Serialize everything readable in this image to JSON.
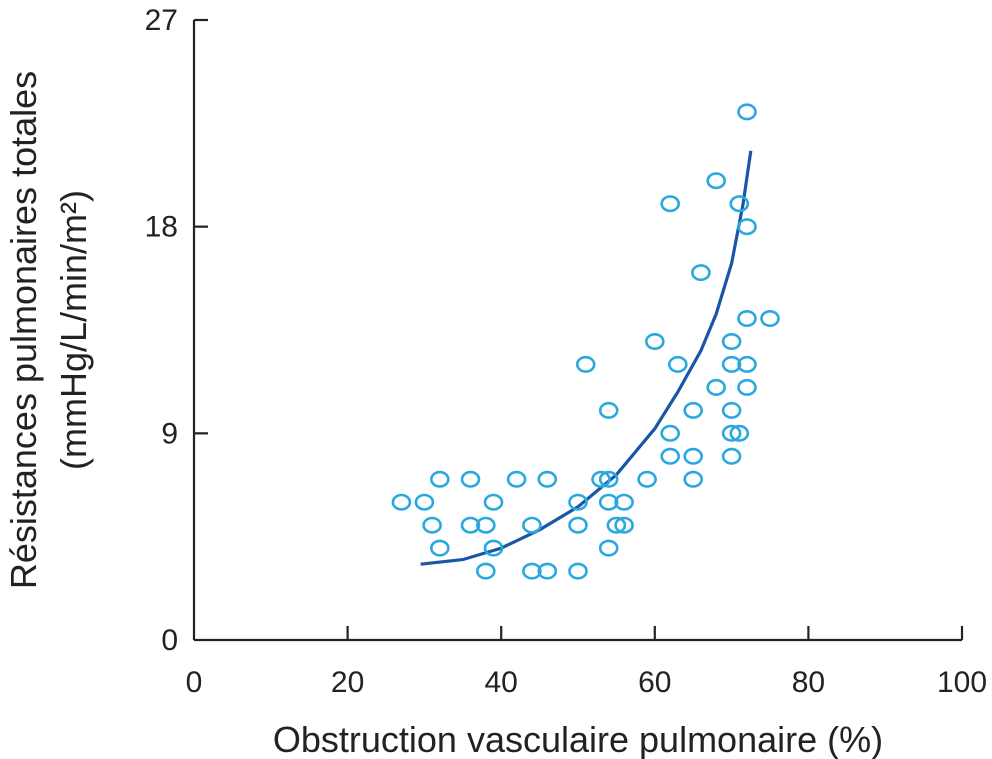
{
  "chart_data": {
    "type": "scatter",
    "title": "",
    "xlabel": "Obstruction vasculaire pulmonaire (%)",
    "ylabel_line1": "Résistances pulmonaires totales",
    "ylabel_line2": "(mmHg/L/min/m²)",
    "xlim": [
      0,
      100
    ],
    "ylim": [
      0,
      27
    ],
    "x_ticks": [
      0,
      20,
      40,
      60,
      80,
      100
    ],
    "y_ticks": [
      0,
      9,
      18,
      27
    ],
    "grid": false,
    "legend": "none",
    "marker_color": "#29a8e0",
    "curve_color": "#1a56a6",
    "points": [
      {
        "x": 27,
        "y": 6
      },
      {
        "x": 30,
        "y": 6
      },
      {
        "x": 31,
        "y": 5
      },
      {
        "x": 32,
        "y": 7
      },
      {
        "x": 32,
        "y": 4
      },
      {
        "x": 36,
        "y": 7
      },
      {
        "x": 36,
        "y": 5
      },
      {
        "x": 38,
        "y": 5
      },
      {
        "x": 38,
        "y": 3
      },
      {
        "x": 39,
        "y": 6
      },
      {
        "x": 39,
        "y": 4
      },
      {
        "x": 42,
        "y": 7
      },
      {
        "x": 44,
        "y": 5
      },
      {
        "x": 44,
        "y": 3
      },
      {
        "x": 46,
        "y": 7
      },
      {
        "x": 46,
        "y": 3
      },
      {
        "x": 50,
        "y": 6
      },
      {
        "x": 50,
        "y": 5
      },
      {
        "x": 50,
        "y": 3
      },
      {
        "x": 51,
        "y": 12
      },
      {
        "x": 53,
        "y": 7
      },
      {
        "x": 54,
        "y": 7
      },
      {
        "x": 54,
        "y": 6
      },
      {
        "x": 54,
        "y": 4
      },
      {
        "x": 54,
        "y": 10
      },
      {
        "x": 55,
        "y": 5
      },
      {
        "x": 56,
        "y": 5
      },
      {
        "x": 56,
        "y": 6
      },
      {
        "x": 59,
        "y": 7
      },
      {
        "x": 60,
        "y": 13
      },
      {
        "x": 62,
        "y": 19
      },
      {
        "x": 62,
        "y": 9
      },
      {
        "x": 62,
        "y": 8
      },
      {
        "x": 63,
        "y": 12
      },
      {
        "x": 65,
        "y": 10
      },
      {
        "x": 65,
        "y": 8
      },
      {
        "x": 65,
        "y": 7
      },
      {
        "x": 66,
        "y": 16
      },
      {
        "x": 68,
        "y": 20
      },
      {
        "x": 68,
        "y": 11
      },
      {
        "x": 70,
        "y": 13
      },
      {
        "x": 70,
        "y": 12
      },
      {
        "x": 70,
        "y": 10
      },
      {
        "x": 70,
        "y": 9
      },
      {
        "x": 70,
        "y": 8
      },
      {
        "x": 71,
        "y": 19
      },
      {
        "x": 71,
        "y": 9
      },
      {
        "x": 72,
        "y": 23
      },
      {
        "x": 72,
        "y": 18
      },
      {
        "x": 72,
        "y": 14
      },
      {
        "x": 72,
        "y": 12
      },
      {
        "x": 72,
        "y": 11
      },
      {
        "x": 75,
        "y": 14
      }
    ],
    "fit_curve": [
      {
        "x": 29.5,
        "y": 3.3
      },
      {
        "x": 35,
        "y": 3.5
      },
      {
        "x": 40,
        "y": 4.0
      },
      {
        "x": 45,
        "y": 4.8
      },
      {
        "x": 50,
        "y": 5.8
      },
      {
        "x": 55,
        "y": 7.2
      },
      {
        "x": 60,
        "y": 9.2
      },
      {
        "x": 63,
        "y": 10.8
      },
      {
        "x": 66,
        "y": 12.6
      },
      {
        "x": 68,
        "y": 14.2
      },
      {
        "x": 70,
        "y": 16.4
      },
      {
        "x": 71.5,
        "y": 19.0
      },
      {
        "x": 72.5,
        "y": 21.3
      }
    ]
  }
}
